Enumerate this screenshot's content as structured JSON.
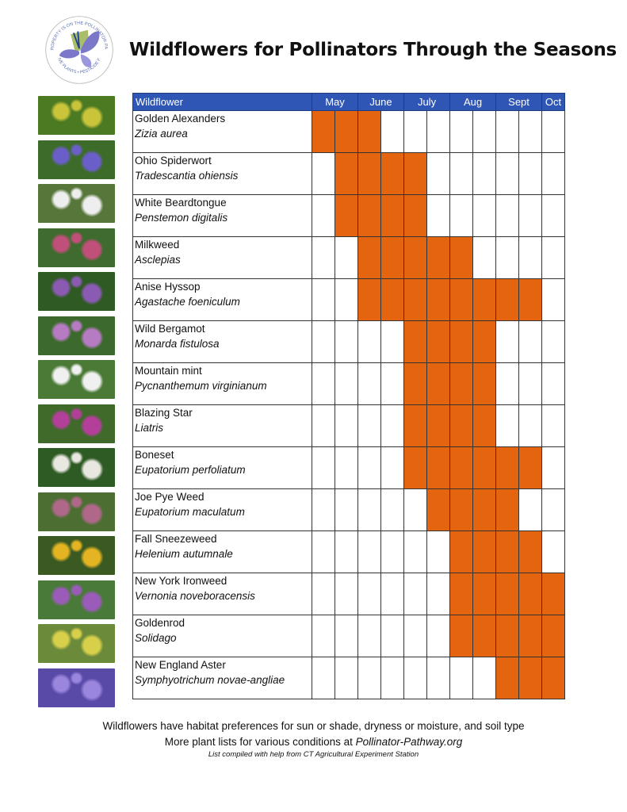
{
  "title": "Wildflowers for Pollinators Through the Seasons",
  "logo": {
    "text_top": "THIS PROPERTY IS ON THE POLLINATOR PATHWAY",
    "text_bottom": "NATIVE PLANTS • PESTICIDE FREE",
    "colors": [
      "#7b78c9",
      "#a9bd6a",
      "#1f3f8f"
    ]
  },
  "colors": {
    "header": "#2f55b5",
    "bloom": "#e5640f"
  },
  "table": {
    "header": "Wildflower",
    "months": [
      {
        "label": "May",
        "span": 2
      },
      {
        "label": "June",
        "span": 2
      },
      {
        "label": "July",
        "span": 2
      },
      {
        "label": "Aug",
        "span": 2
      },
      {
        "label": "Sept",
        "span": 2
      },
      {
        "label": "Oct",
        "span": 1
      }
    ],
    "rows": [
      {
        "common": "Golden Alexanders",
        "scientific": "Zizia aurea",
        "bloom": [
          1,
          1,
          1,
          0,
          0,
          0,
          0,
          0,
          0,
          0,
          0
        ],
        "photo": [
          "#4c7a23",
          "#c9c43a"
        ]
      },
      {
        "common": "Ohio Spiderwort",
        "scientific": "Tradescantia ohiensis",
        "bloom": [
          0,
          1,
          1,
          1,
          1,
          0,
          0,
          0,
          0,
          0,
          0
        ],
        "photo": [
          "#3d6b2a",
          "#6a5fc9"
        ]
      },
      {
        "common": "White Beardtongue",
        "scientific": "Penstemon digitalis",
        "bloom": [
          0,
          1,
          1,
          1,
          1,
          0,
          0,
          0,
          0,
          0,
          0
        ],
        "photo": [
          "#56763a",
          "#eeeeee"
        ]
      },
      {
        "common": "Milkweed",
        "scientific": "Asclepias",
        "bloom": [
          0,
          0,
          1,
          1,
          1,
          1,
          1,
          0,
          0,
          0,
          0
        ],
        "photo": [
          "#3f6b2e",
          "#c0507a"
        ]
      },
      {
        "common": "Anise Hyssop",
        "scientific": "Agastache foeniculum",
        "bloom": [
          0,
          0,
          1,
          1,
          1,
          1,
          1,
          1,
          1,
          1,
          0
        ],
        "photo": [
          "#2f5a24",
          "#8b5bb4"
        ]
      },
      {
        "common": "Wild Bergamot",
        "scientific": "Monarda fistulosa",
        "bloom": [
          0,
          0,
          0,
          0,
          1,
          1,
          1,
          1,
          0,
          0,
          0
        ],
        "photo": [
          "#3b6a2c",
          "#b77bc4"
        ]
      },
      {
        "common": "Mountain mint",
        "scientific": "Pycnanthemum virginianum",
        "bloom": [
          0,
          0,
          0,
          0,
          1,
          1,
          1,
          1,
          0,
          0,
          0
        ],
        "photo": [
          "#4a7a35",
          "#f0f0f0"
        ]
      },
      {
        "common": "Blazing Star",
        "scientific": "Liatris",
        "bloom": [
          0,
          0,
          0,
          0,
          1,
          1,
          1,
          1,
          0,
          0,
          0
        ],
        "photo": [
          "#3f6a2a",
          "#b43f9a"
        ]
      },
      {
        "common": "Boneset",
        "scientific": "Eupatorium perfoliatum",
        "bloom": [
          0,
          0,
          0,
          0,
          1,
          1,
          1,
          1,
          1,
          1,
          0
        ],
        "photo": [
          "#2e5a24",
          "#e8e8e0"
        ]
      },
      {
        "common": "Joe Pye Weed",
        "scientific": "Eupatorium maculatum",
        "bloom": [
          0,
          0,
          0,
          0,
          0,
          1,
          1,
          1,
          1,
          0,
          0
        ],
        "photo": [
          "#4c6e33",
          "#b0688a"
        ]
      },
      {
        "common": "Fall Sneezeweed",
        "scientific": "Helenium autumnale",
        "bloom": [
          0,
          0,
          0,
          0,
          0,
          0,
          1,
          1,
          1,
          1,
          0
        ],
        "photo": [
          "#3b5a22",
          "#e4b422"
        ]
      },
      {
        "common": "New York Ironweed",
        "scientific": "Vernonia noveboracensis",
        "bloom": [
          0,
          0,
          0,
          0,
          0,
          0,
          1,
          1,
          1,
          1,
          1
        ],
        "photo": [
          "#4a7a3a",
          "#9a5cb8"
        ]
      },
      {
        "common": "Goldenrod",
        "scientific": "Solidago",
        "bloom": [
          0,
          0,
          0,
          0,
          0,
          0,
          1,
          1,
          1,
          1,
          1
        ],
        "photo": [
          "#6b8a3a",
          "#d8d04a"
        ]
      },
      {
        "common": "New England Aster",
        "scientific": "Symphyotrichum novae-angliae",
        "bloom": [
          0,
          0,
          0,
          0,
          0,
          0,
          0,
          0,
          1,
          1,
          1
        ],
        "photo": [
          "#5a4aa8",
          "#9b86dd"
        ]
      }
    ]
  },
  "footer": {
    "line1": "Wildflowers have habitat preferences for sun or shade, dryness or moisture, and soil type",
    "line2_prefix": "More plant lists for various conditions at ",
    "line2_link": "Pollinator-Pathway.org",
    "line3": "List compiled with help from CT Agricultural Experiment Station"
  }
}
